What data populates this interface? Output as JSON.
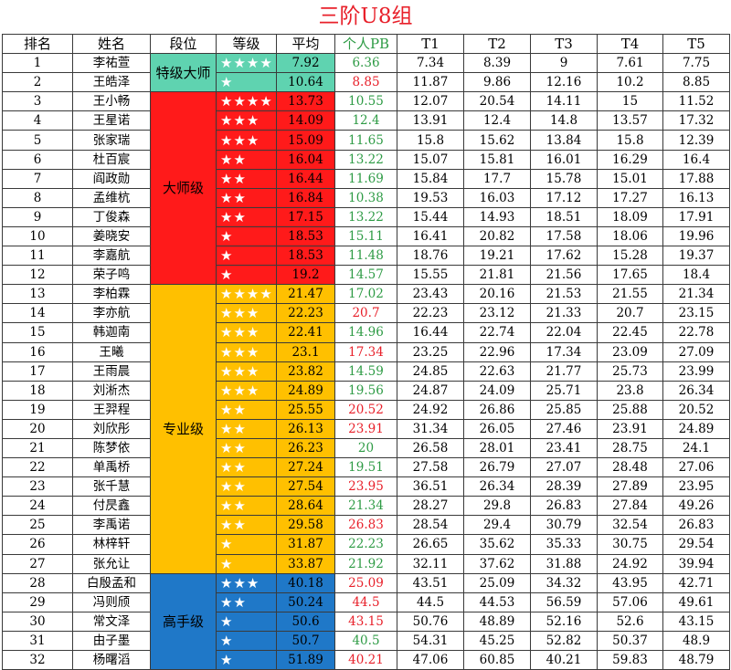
{
  "title": "三阶U8组",
  "headers": [
    "排名",
    "姓名",
    "段位",
    "等级",
    "平均",
    "个人PB",
    "T1",
    "T2",
    "T3",
    "T4",
    "T5"
  ],
  "groups": [
    {
      "label": "特级大师",
      "color": "#5fd3b0",
      "rows": 2
    },
    {
      "label": "大师级",
      "color": "#ff1a1a",
      "rows": 10
    },
    {
      "label": "专业级",
      "color": "#ffc000",
      "rows": 15
    },
    {
      "label": "高手级",
      "color": "#1f78c8",
      "rows": 5
    }
  ],
  "rows": [
    {
      "rank": "1",
      "name": "李祐萱",
      "stars": "★★★★",
      "avg": "7.92",
      "pb": "6.36",
      "pb_color": "green",
      "t": [
        "7.34",
        "8.39",
        "9",
        "7.61",
        "7.75"
      ]
    },
    {
      "rank": "2",
      "name": "王皓泽",
      "stars": "★",
      "avg": "10.64",
      "pb": "8.85",
      "pb_color": "red",
      "t": [
        "11.87",
        "9.86",
        "12.16",
        "10.2",
        "8.85"
      ]
    },
    {
      "rank": "3",
      "name": "王小畅",
      "stars": "★★★★",
      "avg": "13.73",
      "pb": "10.55",
      "pb_color": "green",
      "t": [
        "12.07",
        "20.54",
        "14.11",
        "15",
        "11.52"
      ]
    },
    {
      "rank": "4",
      "name": "王星诺",
      "stars": "★★★",
      "avg": "14.09",
      "pb": "12.4",
      "pb_color": "green",
      "t": [
        "13.91",
        "12.4",
        "14.8",
        "13.57",
        "17.32"
      ]
    },
    {
      "rank": "5",
      "name": "张家瑞",
      "stars": "★★★",
      "avg": "15.09",
      "pb": "11.65",
      "pb_color": "green",
      "t": [
        "15.8",
        "15.62",
        "13.84",
        "15.8",
        "12.39"
      ]
    },
    {
      "rank": "6",
      "name": "杜百宸",
      "stars": "★★",
      "avg": "16.04",
      "pb": "13.22",
      "pb_color": "green",
      "t": [
        "15.07",
        "15.81",
        "16.01",
        "16.29",
        "16.4"
      ]
    },
    {
      "rank": "7",
      "name": "阎政勋",
      "stars": "★★",
      "avg": "16.44",
      "pb": "11.69",
      "pb_color": "green",
      "t": [
        "15.84",
        "17.7",
        "15.78",
        "15.01",
        "17.88"
      ]
    },
    {
      "rank": "8",
      "name": "孟维杭",
      "stars": "★★",
      "avg": "16.84",
      "pb": "10.38",
      "pb_color": "green",
      "t": [
        "19.53",
        "16.03",
        "17.12",
        "17.27",
        "16.13"
      ]
    },
    {
      "rank": "9",
      "name": "丁俊森",
      "stars": "★★",
      "avg": "17.15",
      "pb": "13.22",
      "pb_color": "green",
      "t": [
        "15.44",
        "14.93",
        "18.51",
        "18.09",
        "17.91"
      ]
    },
    {
      "rank": "10",
      "name": "姜晓安",
      "stars": "★",
      "avg": "18.53",
      "pb": "15.11",
      "pb_color": "green",
      "t": [
        "16.41",
        "20.82",
        "17.58",
        "18.06",
        "19.96"
      ]
    },
    {
      "rank": "11",
      "name": "李嘉航",
      "stars": "★",
      "avg": "18.53",
      "pb": "11.48",
      "pb_color": "green",
      "t": [
        "18.76",
        "19.21",
        "17.62",
        "15.28",
        "19.37"
      ]
    },
    {
      "rank": "12",
      "name": "荣子鸣",
      "stars": "★",
      "avg": "19.2",
      "pb": "14.57",
      "pb_color": "green",
      "t": [
        "15.55",
        "21.81",
        "21.56",
        "17.65",
        "18.4"
      ]
    },
    {
      "rank": "13",
      "name": "李柏霖",
      "stars": "★★★★",
      "avg": "21.47",
      "pb": "17.02",
      "pb_color": "green",
      "t": [
        "23.43",
        "20.16",
        "21.53",
        "21.55",
        "21.34"
      ]
    },
    {
      "rank": "14",
      "name": "李亦航",
      "stars": "★★★",
      "avg": "22.23",
      "pb": "20.7",
      "pb_color": "red",
      "t": [
        "22.23",
        "23.12",
        "21.33",
        "20.7",
        "23.15"
      ]
    },
    {
      "rank": "15",
      "name": "韩迦南",
      "stars": "★★★",
      "avg": "22.41",
      "pb": "14.96",
      "pb_color": "green",
      "t": [
        "16.44",
        "22.74",
        "22.04",
        "22.45",
        "22.78"
      ]
    },
    {
      "rank": "16",
      "name": "王曦",
      "stars": "★★★",
      "avg": "23.1",
      "pb": "17.34",
      "pb_color": "red",
      "t": [
        "23.25",
        "22.96",
        "17.34",
        "23.09",
        "27.09"
      ]
    },
    {
      "rank": "17",
      "name": "王雨晨",
      "stars": "★★★",
      "avg": "23.82",
      "pb": "14.59",
      "pb_color": "green",
      "t": [
        "24.85",
        "22.63",
        "21.77",
        "25.73",
        "23.99"
      ]
    },
    {
      "rank": "18",
      "name": "刘淅杰",
      "stars": "★★★",
      "avg": "24.89",
      "pb": "19.56",
      "pb_color": "green",
      "t": [
        "24.87",
        "24.09",
        "25.71",
        "23.8",
        "26.34"
      ]
    },
    {
      "rank": "19",
      "name": "王羿程",
      "stars": "★★",
      "avg": "25.55",
      "pb": "20.52",
      "pb_color": "red",
      "t": [
        "24.92",
        "26.86",
        "25.85",
        "25.88",
        "20.52"
      ]
    },
    {
      "rank": "20",
      "name": "刘欣彤",
      "stars": "★★",
      "avg": "26.13",
      "pb": "23.91",
      "pb_color": "red",
      "t": [
        "31.34",
        "26.05",
        "27.46",
        "23.91",
        "24.89"
      ]
    },
    {
      "rank": "21",
      "name": "陈梦依",
      "stars": "★★",
      "avg": "26.23",
      "pb": "20",
      "pb_color": "green",
      "t": [
        "26.58",
        "28.01",
        "23.41",
        "28.75",
        "24.1"
      ]
    },
    {
      "rank": "22",
      "name": "单禹桥",
      "stars": "★★",
      "avg": "27.24",
      "pb": "19.51",
      "pb_color": "green",
      "t": [
        "27.58",
        "26.79",
        "27.07",
        "28.48",
        "27.06"
      ]
    },
    {
      "rank": "23",
      "name": "张千慧",
      "stars": "★★",
      "avg": "27.54",
      "pb": "23.95",
      "pb_color": "red",
      "t": [
        "36.51",
        "26.34",
        "28.39",
        "27.89",
        "23.95"
      ]
    },
    {
      "rank": "24",
      "name": "付昃鑫",
      "stars": "★★",
      "avg": "28.64",
      "pb": "21.34",
      "pb_color": "green",
      "t": [
        "28.27",
        "29.8",
        "26.83",
        "27.84",
        "49.26"
      ]
    },
    {
      "rank": "25",
      "name": "李禹诺",
      "stars": "★★",
      "avg": "29.58",
      "pb": "26.83",
      "pb_color": "red",
      "t": [
        "28.54",
        "29.4",
        "30.79",
        "32.54",
        "26.83"
      ]
    },
    {
      "rank": "26",
      "name": "林梓轩",
      "stars": "★",
      "avg": "31.87",
      "pb": "22.23",
      "pb_color": "green",
      "t": [
        "26.65",
        "35.62",
        "35.33",
        "30.75",
        "29.54"
      ]
    },
    {
      "rank": "27",
      "name": "张允让",
      "stars": "★",
      "avg": "33.87",
      "pb": "21.92",
      "pb_color": "green",
      "t": [
        "32.11",
        "37.62",
        "31.88",
        "24.92",
        "39.94"
      ]
    },
    {
      "rank": "28",
      "name": "白殷孟和",
      "stars": "★★★",
      "avg": "40.18",
      "pb": "25.09",
      "pb_color": "red",
      "t": [
        "43.51",
        "25.09",
        "34.32",
        "43.95",
        "42.71"
      ]
    },
    {
      "rank": "29",
      "name": "冯则颀",
      "stars": "★★",
      "avg": "50.24",
      "pb": "44.5",
      "pb_color": "red",
      "t": [
        "44.5",
        "44.53",
        "56.59",
        "57.06",
        "49.61"
      ]
    },
    {
      "rank": "30",
      "name": "常文泽",
      "stars": "★",
      "avg": "50.6",
      "pb": "43.15",
      "pb_color": "red",
      "t": [
        "50.76",
        "48.89",
        "52.16",
        "52.6",
        "43.15"
      ]
    },
    {
      "rank": "31",
      "name": "由子墨",
      "stars": "★",
      "avg": "50.7",
      "pb": "40.5",
      "pb_color": "green",
      "t": [
        "54.31",
        "45.25",
        "52.82",
        "50.37",
        "48.9"
      ]
    },
    {
      "rank": "32",
      "name": "杨曙滔",
      "stars": "★",
      "avg": "51.89",
      "pb": "40.21",
      "pb_color": "red",
      "t": [
        "47.06",
        "60.85",
        "40.21",
        "59.83",
        "48.79"
      ]
    }
  ]
}
